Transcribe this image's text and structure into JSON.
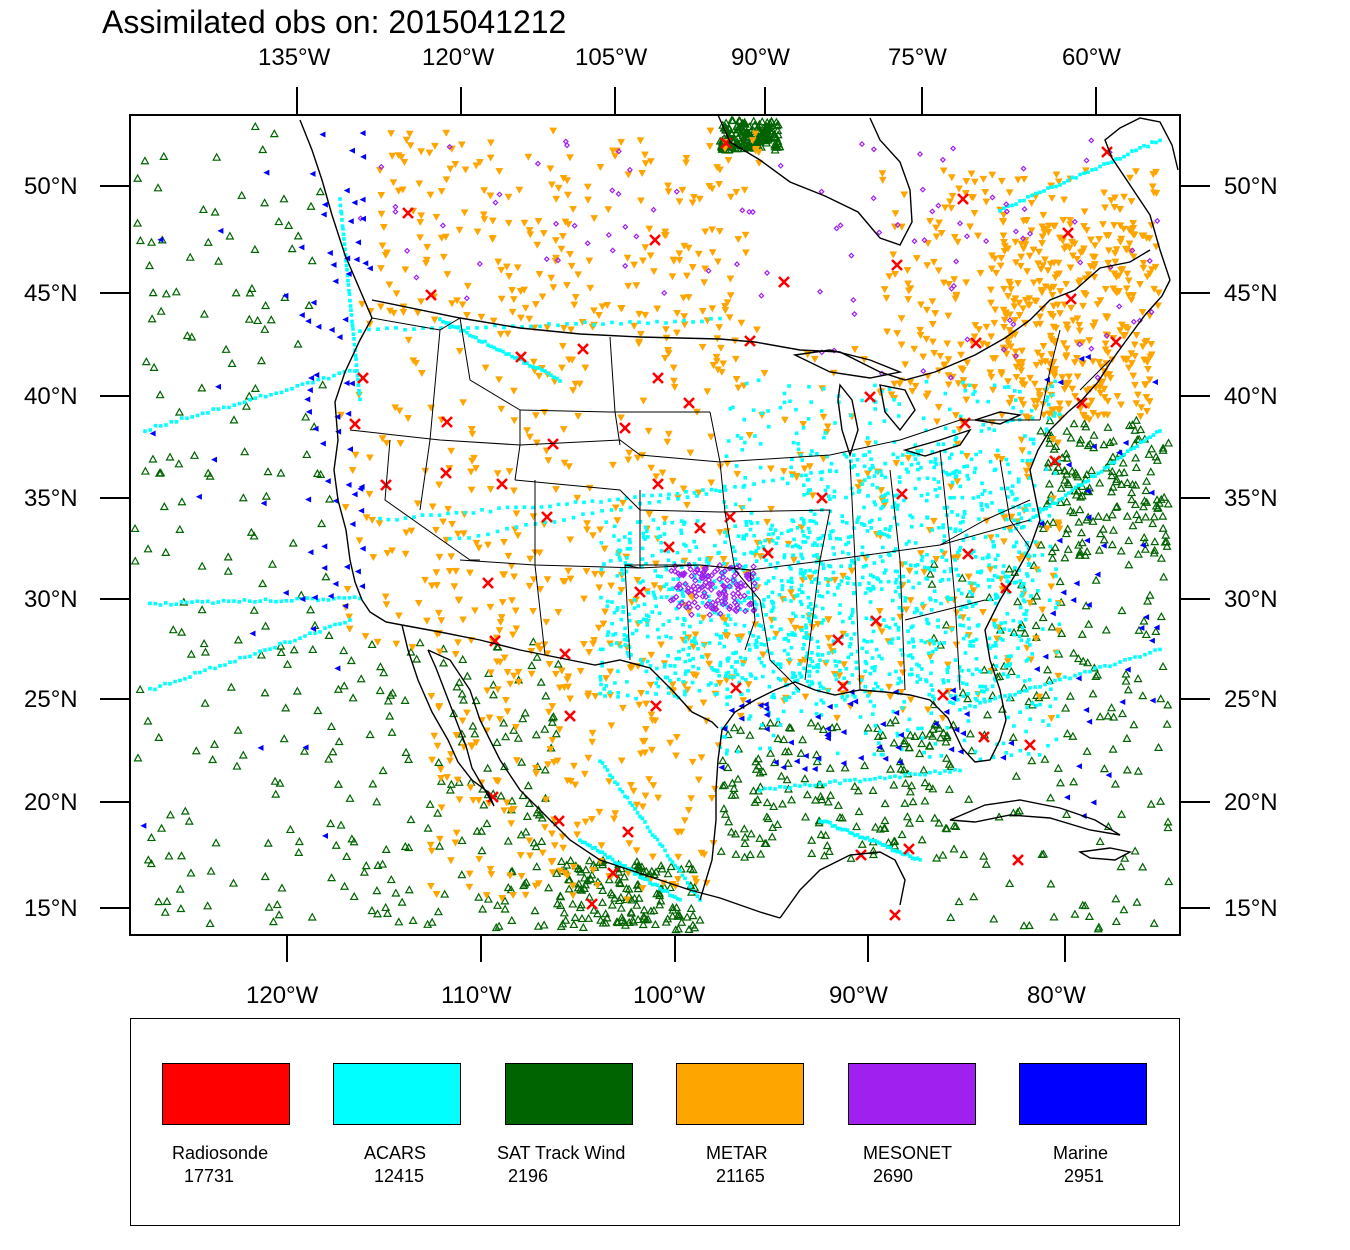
{
  "title": "Assimilated obs on: 2015041212",
  "top_lon_labels": [
    "135°W",
    "120°W",
    "105°W",
    "90°W",
    "75°W",
    "60°W"
  ],
  "bottom_lon_labels": [
    "120°W",
    "110°W",
    "100°W",
    "90°W",
    "80°W"
  ],
  "lat_labels": [
    "50°N",
    "45°N",
    "40°N",
    "35°N",
    "30°N",
    "25°N",
    "20°N",
    "15°N"
  ],
  "legend": [
    {
      "name": "Radiosonde",
      "count": "17731",
      "color": "#ff0000"
    },
    {
      "name": "ACARS",
      "count": "12415",
      "color": "#00ffff"
    },
    {
      "name": "SAT Track Wind",
      "count": "2196",
      "color": "#006400"
    },
    {
      "name": "METAR",
      "count": "21165",
      "color": "#ffa500"
    },
    {
      "name": "MESONET",
      "count": "2690",
      "color": "#a020f0"
    },
    {
      "name": "Marine",
      "count": "2951",
      "color": "#0000ff"
    }
  ]
}
